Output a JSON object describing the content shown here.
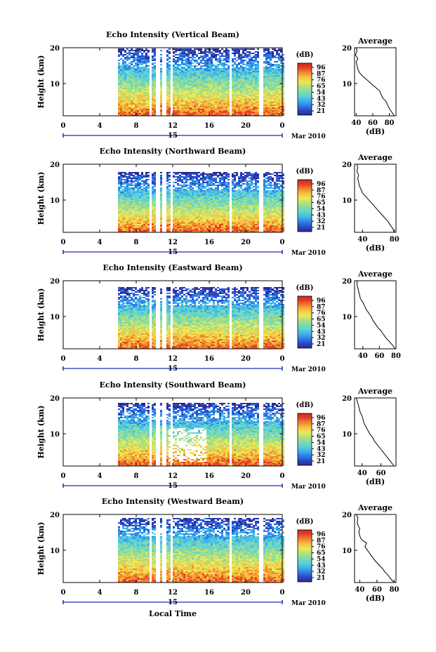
{
  "colors": {
    "colorbar_stops": [
      "#2b2a8f",
      "#2c49c8",
      "#2f7fe6",
      "#3fb3ea",
      "#5fd0d6",
      "#7fdca8",
      "#b5e07c",
      "#e8e85a",
      "#f5c342",
      "#f28a2e",
      "#e2452a",
      "#c8281f"
    ],
    "text": "#000000",
    "timeline": "#1f2cb8",
    "profile_line": "#000000"
  },
  "chart_data": [
    {
      "type": "heatmap",
      "title": "Echo Intensity (Vertical Beam)",
      "ylabel": "Height (km)",
      "xlabel": "",
      "x_ticks": [
        "0",
        "4",
        "8",
        "12",
        "16",
        "20",
        "0"
      ],
      "y_ticks": [
        "10",
        "20"
      ],
      "xlim": [
        0,
        24
      ],
      "ylim": [
        1,
        20
      ],
      "date_marker": "15",
      "date_label": "Mar 2010",
      "data_start_hour": 6,
      "data_top_km": 19.5,
      "gap_hours": [
        9.5,
        10.3,
        11.0,
        11.8,
        18.2,
        21.6
      ],
      "colorbar_label": "(dB)",
      "colorbar_ticks": [
        "96",
        "87",
        "76",
        "65",
        "54",
        "43",
        "32",
        "21"
      ],
      "profile": {
        "title": "Average",
        "xlabel": "(dB)",
        "x_ticks": [
          "40",
          "60",
          "80"
        ],
        "y_ticks": [
          "10",
          "20"
        ],
        "xlim": [
          38,
          88
        ],
        "heights": [
          1,
          2,
          3,
          4,
          5,
          6,
          7,
          8,
          9,
          10,
          11,
          12,
          13,
          14,
          15,
          16,
          17,
          18,
          19,
          20
        ],
        "values": [
          86,
          83,
          80,
          78,
          76,
          72,
          70,
          68,
          63,
          58,
          53,
          48,
          44,
          42,
          41,
          40,
          42,
          39,
          41,
          40
        ]
      }
    },
    {
      "type": "heatmap",
      "title": "Echo Intensity (Northward Beam)",
      "ylabel": "Height (km)",
      "xlabel": "",
      "x_ticks": [
        "0",
        "4",
        "8",
        "12",
        "16",
        "20",
        "0"
      ],
      "y_ticks": [
        "10",
        "20"
      ],
      "xlim": [
        0,
        24
      ],
      "ylim": [
        1,
        20
      ],
      "date_marker": "15",
      "date_label": "Mar 2010",
      "data_start_hour": 6,
      "data_top_km": 17.5,
      "gap_hours": [
        9.5,
        10.3,
        11.0,
        11.8,
        18.2,
        21.6
      ],
      "colorbar_label": "(dB)",
      "colorbar_ticks": [
        "96",
        "87",
        "76",
        "65",
        "54",
        "43",
        "32",
        "21"
      ],
      "profile": {
        "title": "Average",
        "xlabel": "(dB)",
        "x_ticks": [
          "40",
          "80"
        ],
        "y_ticks": [
          "10",
          "20"
        ],
        "xlim": [
          30,
          82
        ],
        "heights": [
          1,
          2,
          3,
          4,
          5,
          6,
          7,
          8,
          9,
          10,
          11,
          12,
          13,
          14,
          15,
          16,
          17,
          18,
          19,
          20
        ],
        "values": [
          80,
          78,
          75,
          72,
          68,
          64,
          60,
          56,
          52,
          48,
          44,
          40,
          38,
          36,
          35,
          34,
          35,
          33,
          34,
          33
        ]
      }
    },
    {
      "type": "heatmap",
      "title": "Echo Intensity (Eastward Beam)",
      "ylabel": "Height (km)",
      "xlabel": "",
      "x_ticks": [
        "0",
        "4",
        "8",
        "12",
        "16",
        "20",
        "0"
      ],
      "y_ticks": [
        "10",
        "20"
      ],
      "xlim": [
        0,
        24
      ],
      "ylim": [
        1,
        20
      ],
      "date_marker": "15",
      "date_label": "Mar 2010",
      "data_start_hour": 6,
      "data_top_km": 18,
      "gap_hours": [
        9.5,
        10.3,
        11.0,
        11.8,
        18.2,
        21.6
      ],
      "colorbar_label": "(dB)",
      "colorbar_ticks": [
        "96",
        "87",
        "76",
        "65",
        "54",
        "43",
        "32",
        "21"
      ],
      "profile": {
        "title": "Average",
        "xlabel": "",
        "x_ticks": [
          "40",
          "60",
          "80"
        ],
        "y_ticks": [
          "10",
          "20"
        ],
        "xlim": [
          30,
          80
        ],
        "heights": [
          1,
          2,
          3,
          4,
          5,
          6,
          7,
          8,
          9,
          10,
          11,
          12,
          13,
          14,
          15,
          16,
          17,
          18,
          19,
          20
        ],
        "values": [
          79,
          76,
          72,
          68,
          65,
          62,
          58,
          55,
          52,
          50,
          47,
          44,
          42,
          40,
          37,
          36,
          35,
          34,
          33,
          33
        ]
      }
    },
    {
      "type": "heatmap",
      "title": "Echo Intensity (Southward Beam)",
      "ylabel": "Height (km)",
      "xlabel": "",
      "x_ticks": [
        "0",
        "4",
        "8",
        "12",
        "16",
        "20",
        "0"
      ],
      "y_ticks": [
        "10",
        "20"
      ],
      "xlim": [
        0,
        24
      ],
      "ylim": [
        1,
        20
      ],
      "date_marker": "15",
      "date_label": "Mar 2010",
      "data_start_hour": 6,
      "data_top_km": 18.5,
      "gap_hours": [
        9.5,
        10.3,
        11.0,
        11.8,
        18.2,
        21.6
      ],
      "colorbar_label": "(dB)",
      "colorbar_ticks": [
        "96",
        "87",
        "76",
        "65",
        "54",
        "43",
        "32",
        "21"
      ],
      "profile": {
        "title": "Average",
        "xlabel": "(dB)",
        "x_ticks": [
          "40",
          "60"
        ],
        "y_ticks": [
          "10",
          "20"
        ],
        "xlim": [
          32,
          76
        ],
        "heights": [
          1,
          2,
          3,
          4,
          5,
          6,
          7,
          8,
          9,
          10,
          11,
          12,
          13,
          14,
          15,
          16,
          17,
          18,
          19,
          20
        ],
        "values": [
          74,
          71,
          68,
          65,
          62,
          59,
          56,
          53,
          51,
          48,
          46,
          44,
          42,
          41,
          40,
          38,
          37,
          36,
          35,
          34
        ]
      }
    },
    {
      "type": "heatmap",
      "title": "Echo Intensity (Westward Beam)",
      "ylabel": "Height (km)",
      "xlabel": "Local Time",
      "x_ticks": [
        "0",
        "4",
        "8",
        "12",
        "16",
        "20",
        "0"
      ],
      "y_ticks": [
        "10",
        "20"
      ],
      "xlim": [
        0,
        24
      ],
      "ylim": [
        1,
        20
      ],
      "date_marker": "15",
      "date_label": "Mar 2010",
      "data_start_hour": 6,
      "data_top_km": 19,
      "gap_hours": [
        9.5,
        10.3,
        11.0,
        11.8,
        18.2,
        21.6
      ],
      "colorbar_label": "(dB)",
      "colorbar_ticks": [
        "96",
        "87",
        "76",
        "65",
        "54",
        "43",
        "32",
        "21"
      ],
      "profile": {
        "title": "Average",
        "xlabel": "(dB)",
        "x_ticks": [
          "40",
          "60",
          "80"
        ],
        "y_ticks": [
          "10",
          "20"
        ],
        "xlim": [
          34,
          82
        ],
        "heights": [
          1,
          2,
          3,
          4,
          5,
          6,
          7,
          8,
          9,
          10,
          11,
          12,
          13,
          14,
          15,
          16,
          17,
          18,
          19,
          20
        ],
        "values": [
          80,
          76,
          73,
          69,
          66,
          62,
          58,
          55,
          52,
          49,
          46,
          48,
          42,
          40,
          39,
          40,
          38,
          37,
          38,
          36
        ]
      }
    }
  ]
}
